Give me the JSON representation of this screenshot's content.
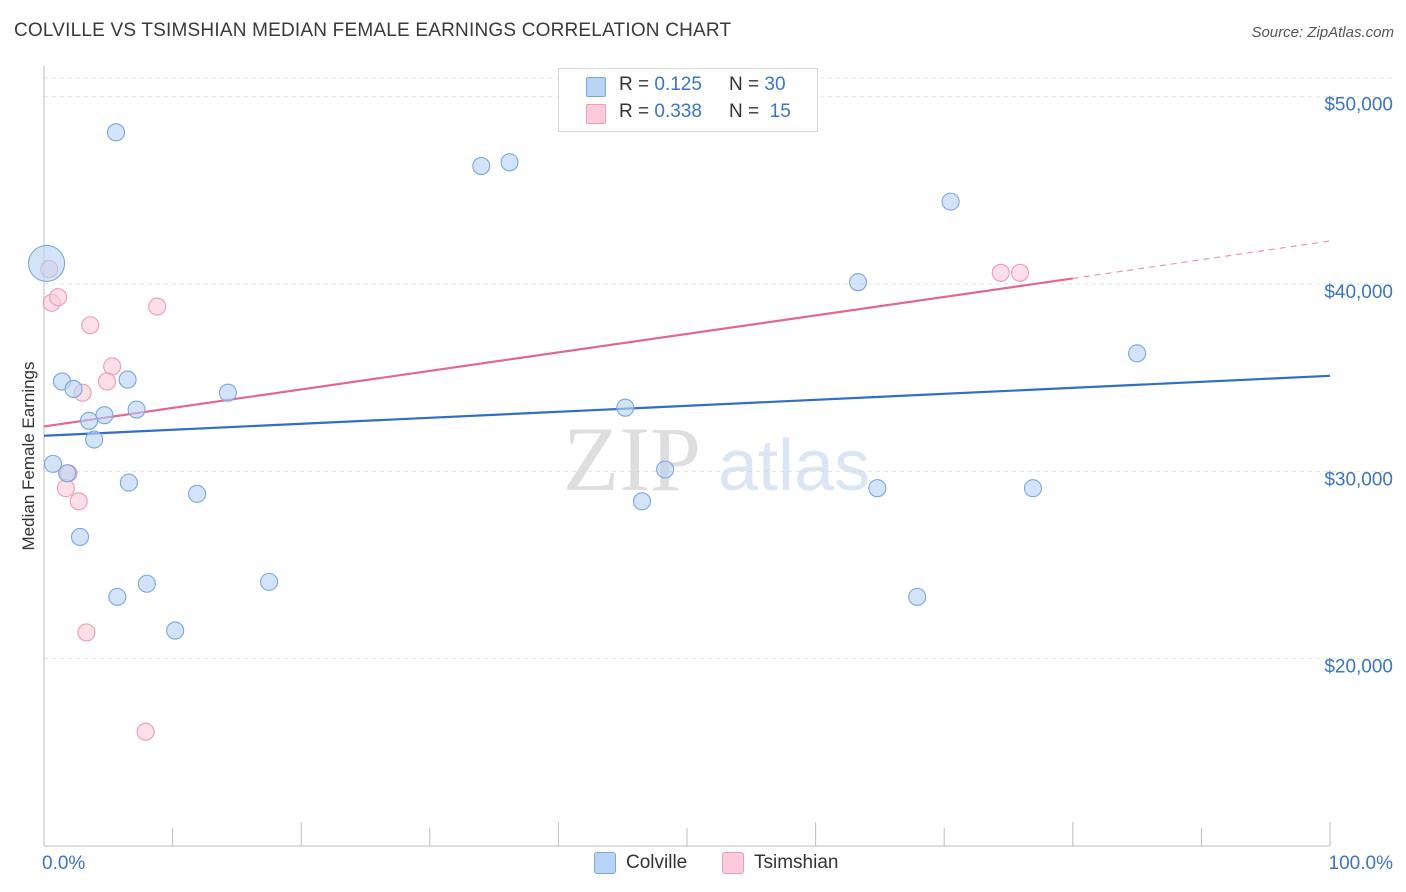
{
  "title": "COLVILLE VS TSIMSHIAN MEDIAN FEMALE EARNINGS CORRELATION CHART",
  "source": "Source: ZipAtlas.com",
  "watermark": {
    "zip": "ZIP",
    "atlas": "atlas"
  },
  "colors": {
    "colville_fill": "#b9d3f4",
    "colville_stroke": "#7aa7e0",
    "colville_line": "#2f6fc6",
    "tsimshian_fill": "#fbcbd9",
    "tsimshian_stroke": "#ee9bb6",
    "tsimshian_line": "#e06892",
    "axis_text": "#3b75c5",
    "grid": "#e3e3e3"
  },
  "legend_top": {
    "colville": {
      "r_label": "R =",
      "r_value": "0.125",
      "n_label": "N =",
      "n_value": "30"
    },
    "tsimshian": {
      "r_label": "R =",
      "r_value": "0.338",
      "n_label": "N =",
      "n_value": "15"
    }
  },
  "legend_bottom": {
    "colville": "Colville",
    "tsimshian": "Tsimshian"
  },
  "chart_data": {
    "type": "scatter",
    "title": "COLVILLE VS TSIMSHIAN MEDIAN FEMALE EARNINGS CORRELATION CHART",
    "xlabel": "",
    "ylabel": "Median Female Earnings",
    "xlim": [
      0,
      100
    ],
    "ylim": [
      10000,
      51000
    ],
    "x_tick_labels": [
      "0.0%",
      "100.0%"
    ],
    "y_ticks": [
      20000,
      30000,
      40000,
      50000
    ],
    "y_tick_labels": [
      "$20,000",
      "$30,000",
      "$40,000",
      "$50,000"
    ],
    "grid": true,
    "series": [
      {
        "name": "Colville",
        "points": [
          {
            "x": 0.2,
            "y": 41100,
            "size": "large"
          },
          {
            "x": 5.6,
            "y": 48100
          },
          {
            "x": 34.0,
            "y": 46300
          },
          {
            "x": 36.2,
            "y": 46500
          },
          {
            "x": 70.5,
            "y": 44400
          },
          {
            "x": 63.3,
            "y": 40100
          },
          {
            "x": 85.0,
            "y": 36300
          },
          {
            "x": 1.4,
            "y": 34800
          },
          {
            "x": 2.3,
            "y": 34400
          },
          {
            "x": 6.5,
            "y": 34900
          },
          {
            "x": 14.3,
            "y": 34200
          },
          {
            "x": 7.2,
            "y": 33300
          },
          {
            "x": 4.7,
            "y": 33000
          },
          {
            "x": 3.5,
            "y": 32700
          },
          {
            "x": 3.9,
            "y": 31700
          },
          {
            "x": 45.2,
            "y": 33400
          },
          {
            "x": 0.7,
            "y": 30400
          },
          {
            "x": 1.8,
            "y": 29900
          },
          {
            "x": 6.6,
            "y": 29400
          },
          {
            "x": 11.9,
            "y": 28800
          },
          {
            "x": 48.3,
            "y": 30100
          },
          {
            "x": 46.5,
            "y": 28400
          },
          {
            "x": 64.8,
            "y": 29100
          },
          {
            "x": 76.9,
            "y": 29100
          },
          {
            "x": 2.8,
            "y": 26500
          },
          {
            "x": 5.7,
            "y": 23300
          },
          {
            "x": 8.0,
            "y": 24000
          },
          {
            "x": 17.5,
            "y": 24100
          },
          {
            "x": 10.2,
            "y": 21500
          },
          {
            "x": 67.9,
            "y": 23300
          }
        ],
        "trend": {
          "x": [
            0,
            100
          ],
          "y": [
            31900,
            35100
          ]
        }
      },
      {
        "name": "Tsimshian",
        "points": [
          {
            "x": 0.4,
            "y": 40800
          },
          {
            "x": 0.6,
            "y": 39000
          },
          {
            "x": 1.1,
            "y": 39300
          },
          {
            "x": 3.6,
            "y": 37800
          },
          {
            "x": 8.8,
            "y": 38800
          },
          {
            "x": 5.3,
            "y": 35600
          },
          {
            "x": 4.9,
            "y": 34800
          },
          {
            "x": 3.0,
            "y": 34200
          },
          {
            "x": 1.9,
            "y": 29900
          },
          {
            "x": 1.7,
            "y": 29100
          },
          {
            "x": 2.7,
            "y": 28400
          },
          {
            "x": 3.3,
            "y": 21400
          },
          {
            "x": 7.9,
            "y": 16100
          },
          {
            "x": 74.4,
            "y": 40600
          },
          {
            "x": 75.9,
            "y": 40600
          }
        ],
        "trend": {
          "x": [
            0,
            80
          ],
          "y": [
            32400,
            40300
          ]
        },
        "trend_dashed_extension": {
          "x": [
            80,
            100
          ],
          "y": [
            40300,
            42300
          ]
        }
      }
    ]
  }
}
